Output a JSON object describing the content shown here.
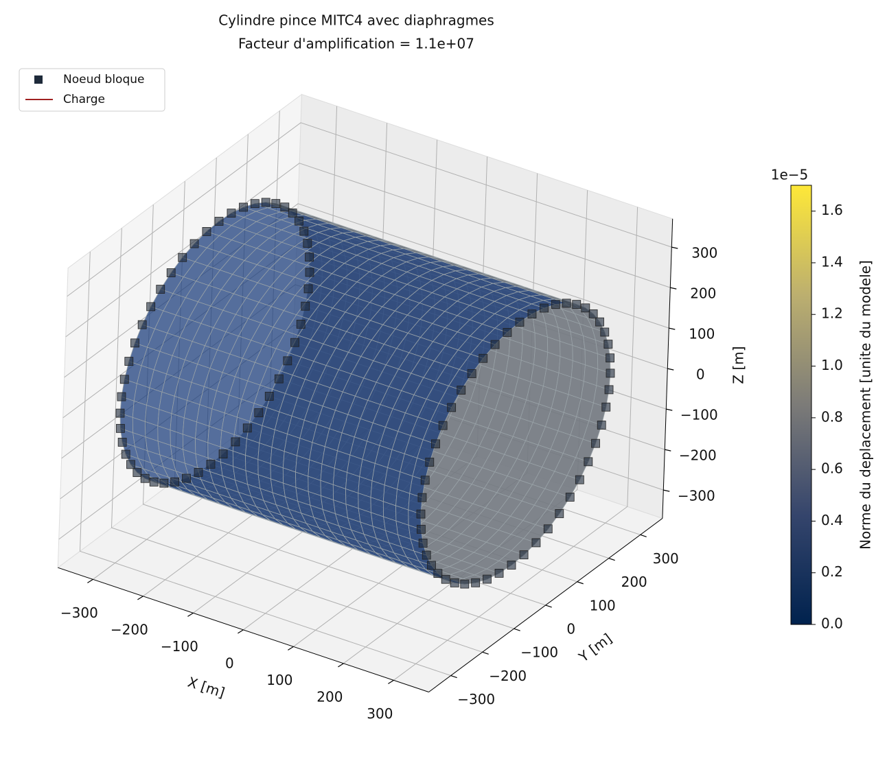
{
  "chart_data": {
    "type": "surface3d",
    "title": "Cylindre pince MITC4 avec diaphragmes",
    "subtitle": "Facteur d'amplification = 1.1e+07",
    "legend": [
      {
        "name": "Noeud bloque",
        "color": "#1e2a3a",
        "marker": "square"
      },
      {
        "name": "Charge",
        "color": "#a02020",
        "marker": "line"
      }
    ],
    "legend_position": "upper left",
    "xlabel": "X [m]",
    "ylabel": "Y [m]",
    "zlabel": "Z [m]",
    "xlim": [
      -370,
      370
    ],
    "ylim": [
      -370,
      370
    ],
    "zlim": [
      -370,
      370
    ],
    "xticks": [
      {
        "value": -300,
        "label": "−300"
      },
      {
        "value": -200,
        "label": "−200"
      },
      {
        "value": -100,
        "label": "−100"
      },
      0,
      100,
      200,
      300
    ],
    "yticks": [
      {
        "value": -300,
        "label": "−300"
      },
      {
        "value": -200,
        "label": "−200"
      },
      {
        "value": -100,
        "label": "−100"
      },
      0,
      100,
      200,
      300
    ],
    "zticks": [
      {
        "value": -300,
        "label": "−300"
      },
      {
        "value": -200,
        "label": "−200"
      },
      {
        "value": -100,
        "label": "−100"
      },
      0,
      100,
      200,
      300
    ],
    "grid": true,
    "colorbar": {
      "label": "Norme du deplacement [unite du modele]",
      "offset": "1e−5",
      "lim": [
        0,
        1.7
      ],
      "ticks": [
        {
          "value": 0,
          "label": "0.0"
        },
        {
          "value": 0.2,
          "label": "0.2"
        },
        {
          "value": 0.4,
          "label": "0.4"
        },
        {
          "value": 0.6,
          "label": "0.6"
        },
        {
          "value": 0.8,
          "label": "0.8"
        },
        {
          "value": 1,
          "label": "1.0"
        },
        {
          "value": 1.2,
          "label": "1.2"
        },
        {
          "value": 1.4,
          "label": "1.4"
        },
        {
          "value": 1.6,
          "label": "1.6"
        }
      ]
    }
  }
}
